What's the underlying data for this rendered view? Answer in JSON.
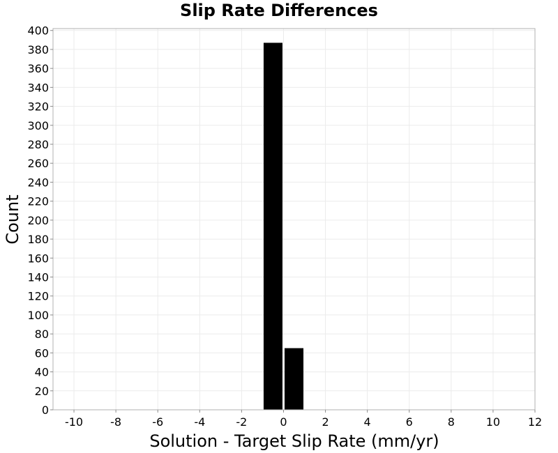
{
  "chart_data": {
    "type": "bar",
    "title": "Slip Rate Differences",
    "xlabel": "Solution - Target Slip Rate (mm/yr)",
    "ylabel": "Count",
    "xlim": [
      -11,
      12
    ],
    "ylim": [
      0,
      402
    ],
    "xticks": [
      -10,
      -8,
      -6,
      -4,
      -2,
      0,
      2,
      4,
      6,
      8,
      10,
      12
    ],
    "yticks": [
      0,
      20,
      40,
      60,
      80,
      100,
      120,
      140,
      160,
      180,
      200,
      220,
      240,
      260,
      280,
      300,
      320,
      340,
      360,
      380,
      400
    ],
    "bins": [
      {
        "x0": -1,
        "x1": 0,
        "value": 387
      },
      {
        "x0": 0,
        "x1": 1,
        "value": 65
      }
    ],
    "bar_color": "#000000",
    "grid": true
  }
}
